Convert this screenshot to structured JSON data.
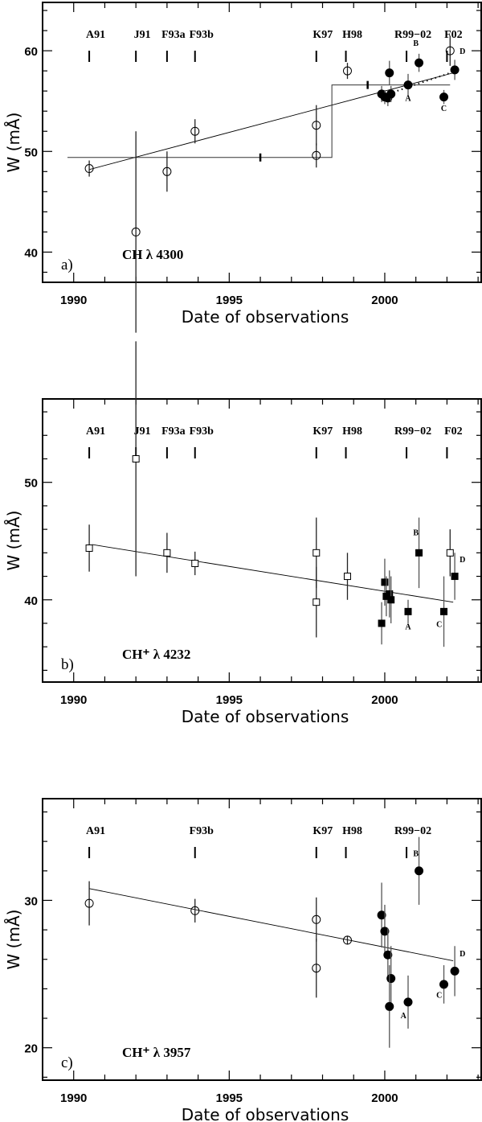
{
  "chart_data": [
    {
      "type": "scatter",
      "panel_label": "a)",
      "annotation": "CH  λ 4300",
      "xlabel": "Date of observations",
      "ylabel": "W (mÅ)",
      "xlim": [
        1989,
        2003.1
      ],
      "ylim": [
        37,
        64.8
      ],
      "xticks": [
        "1990",
        "1995",
        "2000"
      ],
      "yticks": [
        "40",
        "50",
        "60"
      ],
      "ymajor": 10,
      "yminor": 2,
      "references": [
        {
          "label": "A91",
          "x": 1990.5
        },
        {
          "label": "J91",
          "x": 1992
        },
        {
          "label": "F93a",
          "x": 1993
        },
        {
          "label": "F93b",
          "x": 1993.9
        },
        {
          "label": "K97",
          "x": 1997.8
        },
        {
          "label": "H98",
          "x": 1998.75
        },
        {
          "label": "R99−02",
          "x": 2000.7
        },
        {
          "label": "F02",
          "x": 2002.0
        }
      ],
      "open": [
        [
          1990.5,
          48.3,
          0.8
        ],
        [
          1992,
          42,
          10
        ],
        [
          1993,
          48,
          2
        ],
        [
          1993.9,
          52,
          1.2
        ],
        [
          1997.8,
          49.6,
          1.2
        ],
        [
          1997.8,
          52.6,
          2
        ],
        [
          1998.8,
          58,
          0.8
        ],
        [
          2002.1,
          60,
          1.5
        ]
      ],
      "filled": [
        [
          1999.9,
          55.7,
          0.8
        ],
        [
          2000.0,
          55.4,
          0.7
        ],
        [
          2000.1,
          55.3,
          0.8
        ],
        [
          2000.15,
          57.8,
          1.2
        ],
        [
          2000.2,
          55.7,
          0.8
        ],
        [
          2000.75,
          56.6,
          1.1
        ],
        [
          2001.1,
          58.8,
          0.9
        ],
        [
          2001.9,
          55.4,
          0.7
        ],
        [
          2002.25,
          58.1,
          1.0
        ]
      ],
      "point_labels": [
        {
          "text": "A",
          "x": 2000.75,
          "y": 55.0
        },
        {
          "text": "B",
          "x": 2001.0,
          "y": 60.5
        },
        {
          "text": "C",
          "x": 2001.9,
          "y": 54.0
        },
        {
          "text": "D",
          "x": 2002.5,
          "y": 59.7
        }
      ],
      "fit": [
        [
          1990.5,
          48.2
        ],
        [
          2002.2,
          57.8
        ]
      ],
      "step": [
        [
          1989.8,
          49.4
        ],
        [
          1998.3,
          49.4
        ],
        [
          1998.3,
          56.6
        ],
        [
          2002.1,
          56.6
        ]
      ],
      "step_marks": [
        [
          1996,
          49.4
        ],
        [
          1999.45,
          56.6
        ]
      ],
      "dotted": [
        [
          2000.0,
          55.6
        ],
        [
          2002.2,
          57.9
        ]
      ],
      "marker": "circle"
    },
    {
      "type": "scatter",
      "panel_label": "b)",
      "annotation": "CH⁺ λ 4232",
      "xlabel": "Date of observations",
      "ylabel": "W (mÅ)",
      "xlim": [
        1989,
        2003.1
      ],
      "ylim": [
        33,
        57.1
      ],
      "xticks": [
        "1990",
        "1995",
        "2000"
      ],
      "yticks": [
        "40",
        "50"
      ],
      "ymajor": 10,
      "yminor": 2,
      "references": [
        {
          "label": "A91",
          "x": 1990.5
        },
        {
          "label": "J91",
          "x": 1992
        },
        {
          "label": "F93a",
          "x": 1993
        },
        {
          "label": "F93b",
          "x": 1993.9
        },
        {
          "label": "K97",
          "x": 1997.8
        },
        {
          "label": "H98",
          "x": 1998.75
        },
        {
          "label": "R99−02",
          "x": 2000.7
        },
        {
          "label": "F02",
          "x": 2002.0
        }
      ],
      "open": [
        [
          1990.5,
          44.4,
          2
        ],
        [
          1992,
          52,
          10
        ],
        [
          1993,
          44,
          1.7
        ],
        [
          1993.9,
          43.1,
          1
        ],
        [
          1997.8,
          44,
          3
        ],
        [
          1997.8,
          39.8,
          3
        ],
        [
          1998.8,
          42,
          2
        ],
        [
          2002.1,
          44,
          2
        ]
      ],
      "filled": [
        [
          1999.9,
          38,
          1.8
        ],
        [
          2000.0,
          41.5,
          2
        ],
        [
          2000.05,
          40.3,
          1.7
        ],
        [
          2000.15,
          40.5,
          2
        ],
        [
          2000.2,
          40,
          2
        ],
        [
          2000.75,
          39,
          1
        ],
        [
          2001.1,
          44,
          3
        ],
        [
          2001.9,
          39,
          3
        ],
        [
          2002.25,
          42,
          2
        ]
      ],
      "point_labels": [
        {
          "text": "A",
          "x": 2000.75,
          "y": 37.5
        },
        {
          "text": "B",
          "x": 2001.0,
          "y": 45.5
        },
        {
          "text": "C",
          "x": 2001.75,
          "y": 37.7
        },
        {
          "text": "D",
          "x": 2002.5,
          "y": 43.2
        }
      ],
      "fit": [
        [
          1990.6,
          44.7
        ],
        [
          2002.2,
          39.8
        ]
      ],
      "marker": "square"
    },
    {
      "type": "scatter",
      "panel_label": "c)",
      "annotation": "CH⁺ λ 3957",
      "xlabel": "Date of observations",
      "ylabel": "W (mÅ)",
      "xlim": [
        1989,
        2003.1
      ],
      "ylim": [
        17.8,
        36.9
      ],
      "xticks": [
        "1990",
        "1995",
        "2000"
      ],
      "yticks": [
        "20",
        "30"
      ],
      "ymajor": 10,
      "yminor": 2,
      "references": [
        {
          "label": "A91",
          "x": 1990.5
        },
        {
          "label": "F93b",
          "x": 1993.9
        },
        {
          "label": "K97",
          "x": 1997.8
        },
        {
          "label": "H98",
          "x": 1998.75
        },
        {
          "label": "R99−02",
          "x": 2000.7
        }
      ],
      "open": [
        [
          1990.5,
          29.8,
          1.5
        ],
        [
          1993.9,
          29.3,
          0.8
        ],
        [
          1997.8,
          28.7,
          1.5
        ],
        [
          1997.8,
          25.4,
          2
        ],
        [
          1998.8,
          27.3,
          0.3
        ]
      ],
      "filled": [
        [
          1999.9,
          29,
          2.2
        ],
        [
          2000.0,
          27.9,
          1.8
        ],
        [
          2000.1,
          26.3,
          1.8
        ],
        [
          2000.2,
          24.7,
          2.2
        ],
        [
          2000.15,
          22.8,
          2.8
        ],
        [
          2000.75,
          23.1,
          1.8
        ],
        [
          2001.1,
          32,
          2.3
        ],
        [
          2001.9,
          24.3,
          1.3
        ],
        [
          2002.25,
          25.2,
          1.7
        ]
      ],
      "point_labels": [
        {
          "text": "A",
          "x": 2000.6,
          "y": 22.0
        },
        {
          "text": "B",
          "x": 2001.0,
          "y": 33.0
        },
        {
          "text": "C",
          "x": 2001.75,
          "y": 23.4
        },
        {
          "text": "D",
          "x": 2002.5,
          "y": 26.2
        }
      ],
      "fit": [
        [
          1990.5,
          30.8
        ],
        [
          2002.2,
          25.9
        ]
      ],
      "marker": "circle"
    }
  ]
}
